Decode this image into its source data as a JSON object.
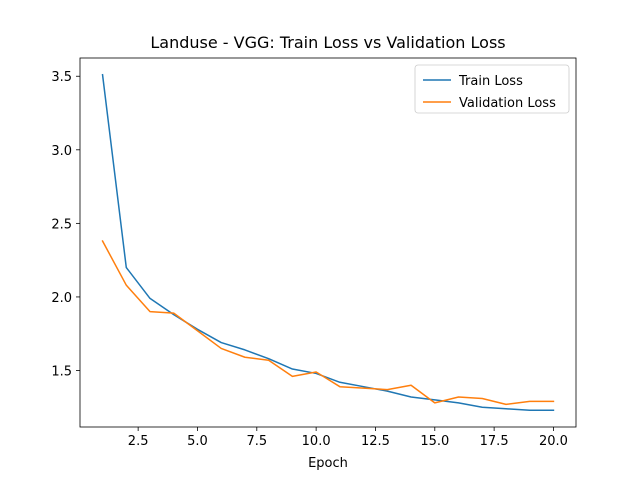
{
  "chart_data": {
    "type": "line",
    "title": "Landuse - VGG: Train Loss vs Validation Loss",
    "xlabel": "Epoch",
    "ylabel": "",
    "xlim": [
      0.05,
      20.95
    ],
    "ylim": [
      1.116,
      3.624
    ],
    "xticks": [
      2.5,
      5.0,
      7.5,
      10.0,
      12.5,
      15.0,
      17.5,
      20.0
    ],
    "xtick_labels": [
      "2.5",
      "5.0",
      "7.5",
      "10.0",
      "12.5",
      "15.0",
      "17.5",
      "20.0"
    ],
    "yticks": [
      1.5,
      2.0,
      2.5,
      3.0,
      3.5
    ],
    "ytick_labels": [
      "1.5",
      "2.0",
      "2.5",
      "3.0",
      "3.5"
    ],
    "grid": false,
    "legend_position": "top-right",
    "x": [
      1,
      2,
      3,
      4,
      5,
      6,
      7,
      8,
      9,
      10,
      11,
      12,
      13,
      14,
      15,
      16,
      17,
      18,
      19,
      20
    ],
    "series": [
      {
        "name": "Train Loss",
        "color": "#1f77b4",
        "values": [
          3.51,
          2.2,
          1.99,
          1.88,
          1.78,
          1.69,
          1.64,
          1.58,
          1.51,
          1.48,
          1.42,
          1.39,
          1.36,
          1.32,
          1.3,
          1.28,
          1.25,
          1.24,
          1.23,
          1.23
        ]
      },
      {
        "name": "Validation Loss",
        "color": "#ff7f0e",
        "values": [
          2.38,
          2.08,
          1.9,
          1.89,
          1.77,
          1.65,
          1.59,
          1.57,
          1.46,
          1.49,
          1.39,
          1.38,
          1.37,
          1.4,
          1.28,
          1.32,
          1.31,
          1.27,
          1.29,
          1.29
        ]
      }
    ]
  }
}
